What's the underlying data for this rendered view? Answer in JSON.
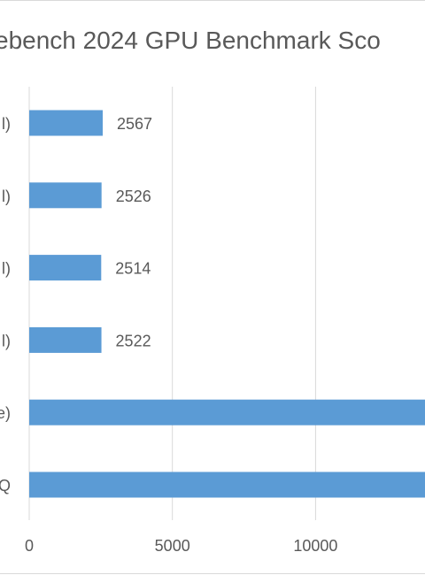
{
  "chart_data": {
    "type": "bar",
    "orientation": "horizontal",
    "title": "ebench 2024 GPU Benchmark Sco",
    "categories": [
      "l)",
      "l)",
      "l)",
      "l)",
      "e)",
      "Q"
    ],
    "values": [
      2567,
      2526,
      2514,
      2522,
      14000,
      14000
    ],
    "value_labels": [
      "2567",
      "2526",
      "2514",
      "2522",
      "",
      ""
    ],
    "x_ticks": [
      0,
      5000,
      10000
    ],
    "x_tick_labels": [
      "0",
      "5000",
      "10000"
    ],
    "xlim": [
      0,
      14000
    ],
    "grid": true,
    "xlabel": "",
    "ylabel": "",
    "bar_color": "#5B9BD5",
    "grid_color": "#D9D9D9",
    "text_color": "#595959"
  }
}
